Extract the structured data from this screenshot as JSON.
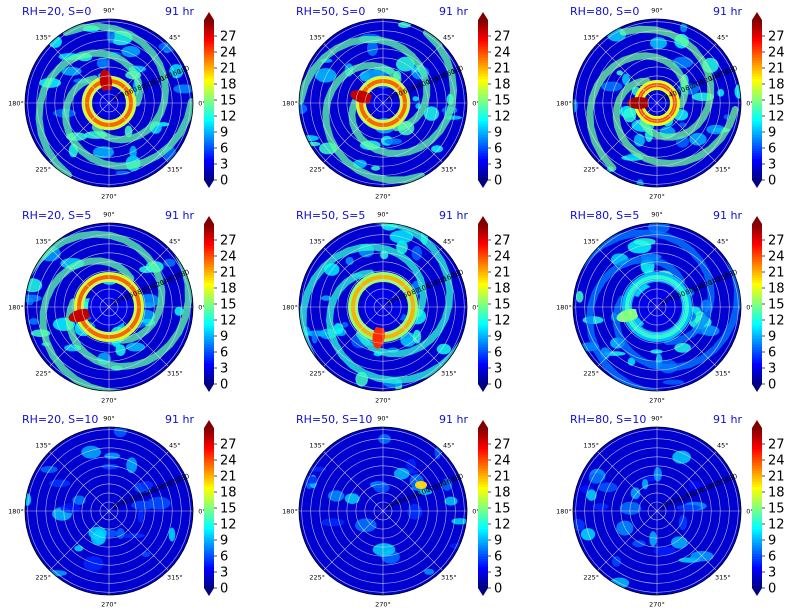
{
  "figure": {
    "panels": [
      {
        "title": "RH=20, S=0",
        "time": "91 hr"
      },
      {
        "title": "RH=50, S=0",
        "time": "91 hr"
      },
      {
        "title": "RH=80, S=0",
        "time": "91 hr"
      },
      {
        "title": "RH=20, S=5",
        "time": "91 hr"
      },
      {
        "title": "RH=50, S=5",
        "time": "91 hr"
      },
      {
        "title": "RH=80, S=5",
        "time": "91 hr"
      },
      {
        "title": "RH=20, S=10",
        "time": "91 hr"
      },
      {
        "title": "RH=50, S=10",
        "time": "91 hr"
      },
      {
        "title": "RH=80, S=10",
        "time": "91 hr"
      }
    ],
    "angle_labels": [
      "0°",
      "45°",
      "90°",
      "135°",
      "180°",
      "225°",
      "270°",
      "315°"
    ],
    "colorbar_ticks": [
      "0",
      "3",
      "6",
      "9",
      "12",
      "15",
      "18",
      "21",
      "24",
      "27"
    ]
  },
  "chart_data": {
    "type": "heatmap",
    "projection": "polar",
    "layout": "3x3 grid",
    "colormap": "jet",
    "clim": [
      0,
      30
    ],
    "colorbar_ticks": [
      0,
      3,
      6,
      9,
      12,
      15,
      18,
      21,
      24,
      27
    ],
    "colorbar_extend": "both",
    "theta_ticks_deg": [
      0,
      45,
      90,
      135,
      180,
      225,
      270,
      315
    ],
    "radial_tick_labels": [
      20,
      40,
      60,
      80,
      100,
      120,
      140,
      160,
      180
    ],
    "grid": true,
    "panels": [
      {
        "RH": 20,
        "S": 0,
        "time_hr": 91,
        "core_max": 28,
        "core_radius": 22,
        "pattern": "compact ring with spiral bands"
      },
      {
        "RH": 50,
        "S": 0,
        "time_hr": 91,
        "core_max": 28,
        "core_radius": 22,
        "pattern": "compact ring with broad spiral bands"
      },
      {
        "RH": 80,
        "S": 0,
        "time_hr": 91,
        "core_max": 29,
        "core_radius": 18,
        "pattern": "small intense core"
      },
      {
        "RH": 20,
        "S": 5,
        "time_hr": 91,
        "core_max": 28,
        "core_radius": 30,
        "pattern": "asymmetric maximum on west side"
      },
      {
        "RH": 50,
        "S": 5,
        "time_hr": 91,
        "core_max": 25,
        "core_radius": 30,
        "pattern": "asymmetric maximum on south-west side"
      },
      {
        "RH": 80,
        "S": 5,
        "time_hr": 91,
        "core_max": 15,
        "core_radius": 30,
        "pattern": "weak ring"
      },
      {
        "RH": 20,
        "S": 10,
        "time_hr": 91,
        "core_max": 5,
        "core_radius": 0,
        "pattern": "weak scattered"
      },
      {
        "RH": 50,
        "S": 10,
        "time_hr": 91,
        "core_max": 20,
        "core_radius": 0,
        "pattern": "scattered cells, maximum north-east"
      },
      {
        "RH": 80,
        "S": 10,
        "time_hr": 91,
        "core_max": 4,
        "core_radius": 0,
        "pattern": "weak scattered"
      }
    ]
  }
}
